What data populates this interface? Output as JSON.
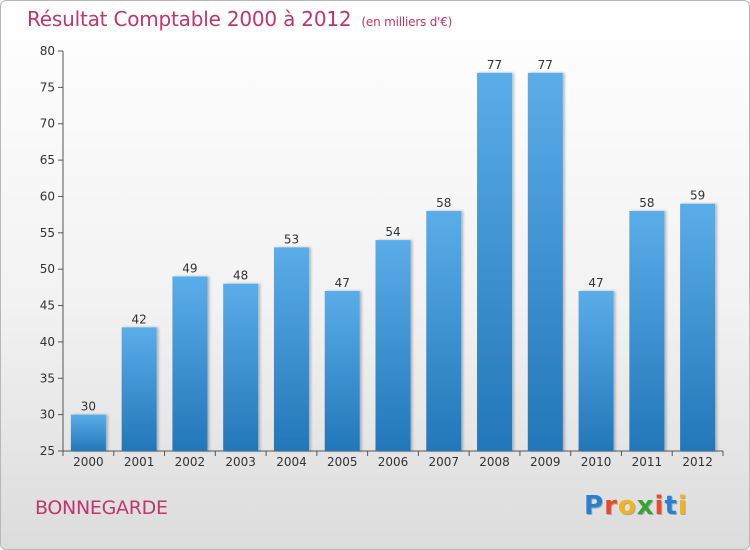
{
  "title": "Résultat Comptable 2000 à 2012",
  "subtitle": "(en milliers d'€)",
  "town": "BONNEGARDE",
  "logo": {
    "letters": [
      {
        "ch": "P",
        "color": "#2a7fd0"
      },
      {
        "ch": "r",
        "color": "#e94b2a"
      },
      {
        "ch": "o",
        "color": "#f2b31b"
      },
      {
        "ch": "x",
        "color": "#3aa335"
      },
      {
        "ch": "i",
        "color": "#e94b2a"
      },
      {
        "ch": "t",
        "color": "#2a7fd0"
      },
      {
        "ch": "i",
        "color": "#f2b31b"
      }
    ]
  },
  "colors": {
    "bar_light": "#5aade8",
    "bar_dark": "#2277b9",
    "title": "#c0356e"
  },
  "chart_data": {
    "type": "bar",
    "categories": [
      "2000",
      "2001",
      "2002",
      "2003",
      "2004",
      "2005",
      "2006",
      "2007",
      "2008",
      "2009",
      "2010",
      "2011",
      "2012"
    ],
    "values": [
      30,
      42,
      49,
      48,
      53,
      47,
      54,
      58,
      77,
      77,
      47,
      58,
      59
    ],
    "title": "Résultat Comptable 2000 à 2012",
    "xlabel": "",
    "ylabel": "",
    "ylim": [
      25,
      80
    ],
    "yticks": [
      25,
      30,
      35,
      40,
      45,
      50,
      55,
      60,
      65,
      70,
      75,
      80
    ],
    "grid": false,
    "legend": "none"
  }
}
